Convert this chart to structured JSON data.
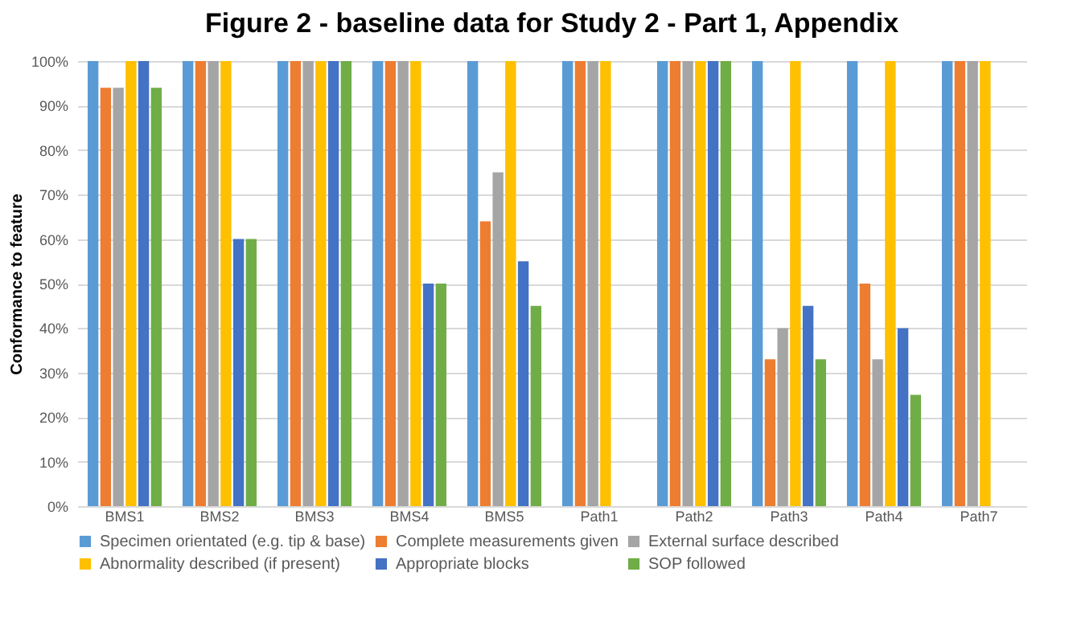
{
  "chart_data": {
    "type": "bar",
    "title": "Figure 2 - baseline data for Study 2 - Part 1, Appendix",
    "ylabel": "Conformance to feature",
    "categories": [
      "BMS1",
      "BMS2",
      "BMS3",
      "BMS4",
      "BMS5",
      "Path1",
      "Path2",
      "Path3",
      "Path4",
      "Path7"
    ],
    "series": [
      {
        "name": "Specimen orientated (e.g. tip & base)",
        "color": "#5b9bd5",
        "values": [
          100,
          100,
          100,
          100,
          100,
          100,
          100,
          100,
          100,
          100
        ]
      },
      {
        "name": "Complete measurements given",
        "color": "#ed7d31",
        "values": [
          94,
          100,
          100,
          100,
          64,
          100,
          100,
          33,
          50,
          100
        ]
      },
      {
        "name": "External surface described",
        "color": "#a5a5a5",
        "values": [
          94,
          100,
          100,
          100,
          75,
          100,
          100,
          40,
          33,
          100
        ]
      },
      {
        "name": "Abnormality described (if present)",
        "color": "#ffc000",
        "values": [
          100,
          100,
          100,
          100,
          100,
          100,
          100,
          100,
          100,
          100
        ]
      },
      {
        "name": "Appropriate blocks",
        "color": "#4472c4",
        "values": [
          100,
          60,
          100,
          50,
          55,
          null,
          100,
          45,
          40,
          null
        ]
      },
      {
        "name": "SOP followed",
        "color": "#70ad47",
        "values": [
          94,
          60,
          100,
          50,
          45,
          null,
          100,
          33,
          25,
          null
        ]
      }
    ],
    "ylim": [
      0,
      100
    ],
    "yticks": [
      {
        "value": 0,
        "label": "0%"
      },
      {
        "value": 10,
        "label": "10%"
      },
      {
        "value": 20,
        "label": "20%"
      },
      {
        "value": 30,
        "label": "30%"
      },
      {
        "value": 40,
        "label": "40%"
      },
      {
        "value": 50,
        "label": "50%"
      },
      {
        "value": 60,
        "label": "60%"
      },
      {
        "value": 70,
        "label": "70%"
      },
      {
        "value": 80,
        "label": "80%"
      },
      {
        "value": 90,
        "label": "90%"
      },
      {
        "value": 100,
        "label": "100%"
      }
    ],
    "grid": "y",
    "legend": "bottom"
  }
}
